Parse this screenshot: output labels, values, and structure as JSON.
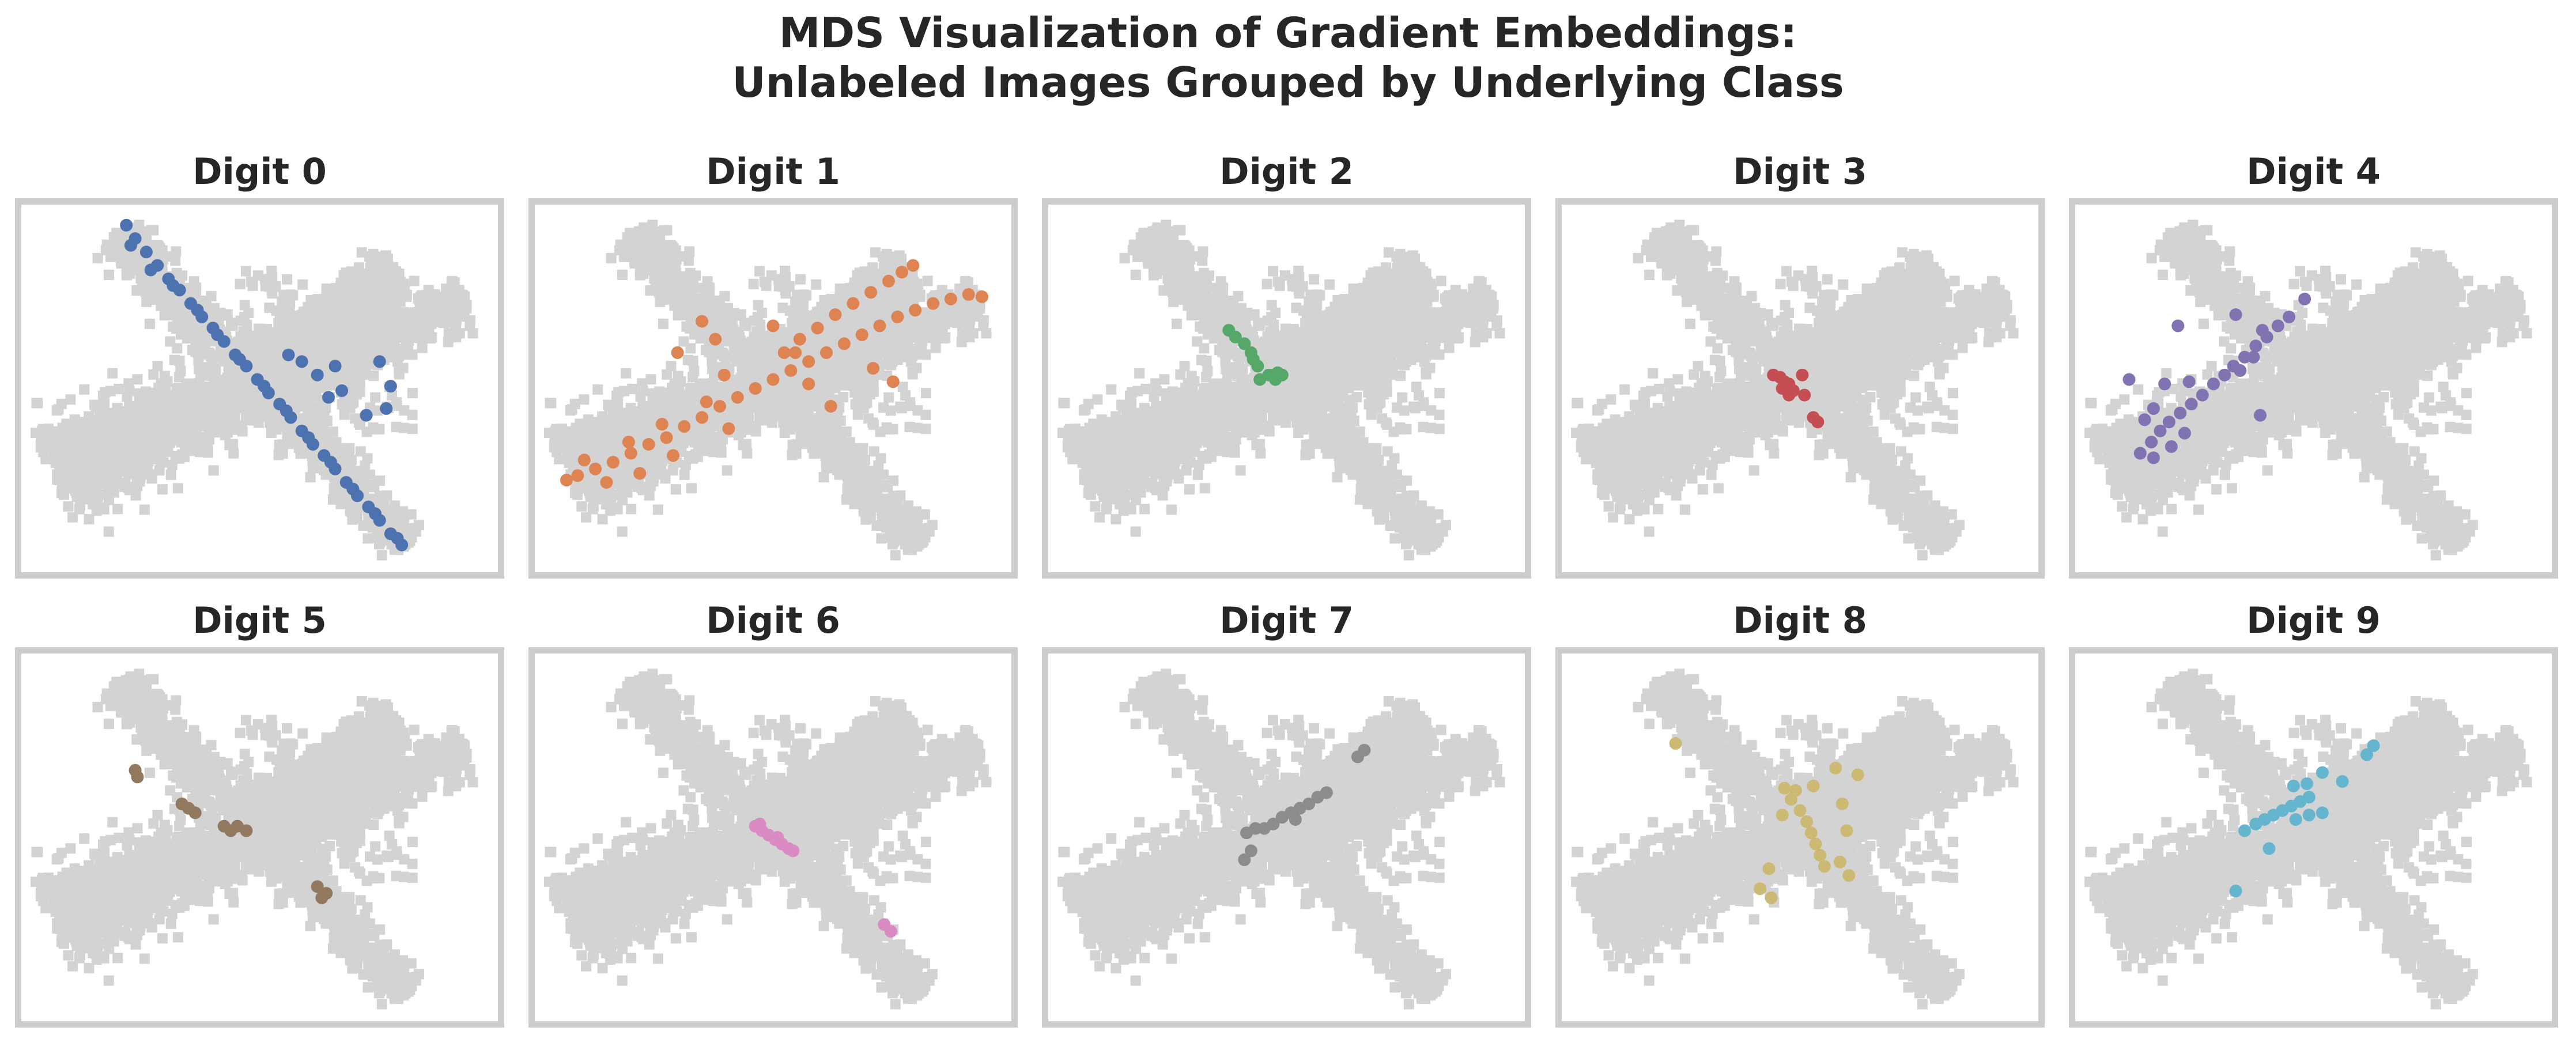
{
  "figure": {
    "title_line1": "MDS Visualization of Gradient Embeddings:",
    "title_line2": "Unlabeled Images Grouped by Underlying Class"
  },
  "colors": {
    "background_points": "#d3d3d3",
    "frame": "#cccccc",
    "text": "#262626"
  },
  "chart_data": {
    "type": "scatter",
    "xlim": [
      -10,
      10
    ],
    "ylim": [
      -7.5,
      7.5
    ],
    "grid": false,
    "legend": "none",
    "background_series": {
      "color": "#d3d3d3",
      "description_of_arms": "light gray points of all classes shown behind each panel"
    },
    "panels": [
      {
        "title": "Digit 0",
        "color": "#4c72b0",
        "points": [
          [
            -6.0,
            7.3
          ],
          [
            -5.6,
            6.7
          ],
          [
            -5.1,
            6.1
          ],
          [
            -4.6,
            5.5
          ],
          [
            -4.1,
            4.9
          ],
          [
            -3.6,
            4.4
          ],
          [
            -3.1,
            3.8
          ],
          [
            -2.6,
            3.2
          ],
          [
            -2.1,
            2.7
          ],
          [
            -1.6,
            2.1
          ],
          [
            -1.1,
            1.5
          ],
          [
            -0.6,
            1.0
          ],
          [
            -0.1,
            0.4
          ],
          [
            0.4,
            -0.2
          ],
          [
            0.9,
            -0.7
          ],
          [
            1.4,
            -1.3
          ],
          [
            1.9,
            -1.9
          ],
          [
            2.4,
            -2.5
          ],
          [
            2.9,
            -3.0
          ],
          [
            3.4,
            -3.6
          ],
          [
            3.9,
            -4.2
          ],
          [
            4.4,
            -4.8
          ],
          [
            4.9,
            -5.3
          ],
          [
            5.4,
            -5.9
          ],
          [
            5.9,
            -6.5
          ],
          [
            6.4,
            -7.0
          ],
          [
            -5.8,
            6.4
          ],
          [
            -4.9,
            5.3
          ],
          [
            -3.9,
            4.6
          ],
          [
            -2.8,
            3.5
          ],
          [
            -1.9,
            2.4
          ],
          [
            -0.9,
            1.3
          ],
          [
            0.2,
            0.1
          ],
          [
            1.2,
            -1.0
          ],
          [
            2.2,
            -2.2
          ],
          [
            3.2,
            -3.3
          ],
          [
            4.2,
            -4.5
          ],
          [
            5.2,
            -5.6
          ],
          [
            6.2,
            -6.7
          ],
          [
            1.3,
            1.5
          ],
          [
            1.9,
            1.2
          ],
          [
            2.6,
            0.6
          ],
          [
            3.4,
            1.0
          ],
          [
            3.7,
            -0.1
          ],
          [
            3.1,
            -0.4
          ],
          [
            5.4,
            1.2
          ],
          [
            5.9,
            0.1
          ],
          [
            5.7,
            -0.9
          ],
          [
            4.8,
            -1.2
          ]
        ]
      },
      {
        "title": "Digit 1",
        "color": "#dd8452",
        "points": [
          [
            -9.3,
            -4.1
          ],
          [
            -8.8,
            -3.9
          ],
          [
            -8.0,
            -3.6
          ],
          [
            -7.2,
            -3.3
          ],
          [
            -6.4,
            -2.9
          ],
          [
            -5.6,
            -2.5
          ],
          [
            -4.8,
            -2.2
          ],
          [
            -4.0,
            -1.7
          ],
          [
            -3.2,
            -1.3
          ],
          [
            -2.4,
            -0.8
          ],
          [
            -1.6,
            -0.4
          ],
          [
            -0.8,
            0.0
          ],
          [
            0.0,
            0.4
          ],
          [
            0.8,
            0.8
          ],
          [
            1.6,
            1.2
          ],
          [
            2.4,
            1.6
          ],
          [
            3.2,
            2.0
          ],
          [
            4.0,
            2.4
          ],
          [
            4.8,
            2.8
          ],
          [
            5.6,
            3.2
          ],
          [
            6.4,
            3.5
          ],
          [
            7.2,
            3.8
          ],
          [
            8.0,
            4.0
          ],
          [
            8.8,
            4.2
          ],
          [
            9.4,
            4.1
          ],
          [
            -8.5,
            -3.2
          ],
          [
            -7.5,
            -4.2
          ],
          [
            -6.5,
            -2.4
          ],
          [
            -6.0,
            -3.8
          ],
          [
            -5.0,
            -1.6
          ],
          [
            -4.5,
            -3.0
          ],
          [
            -3.0,
            -0.6
          ],
          [
            -2.0,
            -1.8
          ],
          [
            0.5,
            1.6
          ],
          [
            1.2,
            2.2
          ],
          [
            2.0,
            2.7
          ],
          [
            2.8,
            3.3
          ],
          [
            3.6,
            3.8
          ],
          [
            4.4,
            4.3
          ],
          [
            5.2,
            4.8
          ],
          [
            5.8,
            5.2
          ],
          [
            6.3,
            5.5
          ],
          [
            -2.6,
            2.2
          ],
          [
            -3.2,
            3.0
          ],
          [
            0.0,
            2.8
          ],
          [
            1.0,
            1.6
          ],
          [
            1.6,
            0.2
          ],
          [
            2.6,
            -0.8
          ],
          [
            4.5,
            0.9
          ],
          [
            5.4,
            0.3
          ],
          [
            -4.3,
            1.6
          ],
          [
            -2.2,
            0.6
          ]
        ]
      },
      {
        "title": "Digit 2",
        "color": "#55a868",
        "points": [
          [
            -2.6,
            2.6
          ],
          [
            -2.3,
            2.3
          ],
          [
            -1.9,
            2.0
          ],
          [
            -1.6,
            1.6
          ],
          [
            -1.5,
            1.3
          ],
          [
            -1.3,
            1.0
          ],
          [
            -1.2,
            0.4
          ],
          [
            -0.8,
            0.6
          ],
          [
            -0.6,
            0.6
          ],
          [
            -0.4,
            0.7
          ],
          [
            -0.2,
            0.6
          ],
          [
            -0.5,
            0.4
          ]
        ]
      },
      {
        "title": "Digit 3",
        "color": "#c44e52",
        "points": [
          [
            -1.2,
            0.6
          ],
          [
            -0.9,
            0.5
          ],
          [
            -0.7,
            0.3
          ],
          [
            -0.5,
            0.2
          ],
          [
            -0.3,
            -0.1
          ],
          [
            -0.5,
            -0.3
          ],
          [
            -0.8,
            0.0
          ],
          [
            0.1,
            0.6
          ],
          [
            0.2,
            -0.3
          ],
          [
            0.6,
            -1.3
          ],
          [
            0.8,
            -1.5
          ]
        ]
      },
      {
        "title": "Digit 4",
        "color": "#8172b2",
        "points": [
          [
            -7.8,
            -2.9
          ],
          [
            -7.3,
            -2.4
          ],
          [
            -6.9,
            -1.9
          ],
          [
            -6.5,
            -1.5
          ],
          [
            -6.0,
            -1.1
          ],
          [
            -5.5,
            -0.7
          ],
          [
            -5.0,
            -0.3
          ],
          [
            -4.5,
            0.2
          ],
          [
            -4.0,
            0.6
          ],
          [
            -3.6,
            1.0
          ],
          [
            -3.1,
            1.4
          ],
          [
            -2.6,
            1.9
          ],
          [
            -2.1,
            2.3
          ],
          [
            -1.6,
            2.8
          ],
          [
            -1.1,
            3.2
          ],
          [
            -7.2,
            -3.1
          ],
          [
            -6.4,
            -2.6
          ],
          [
            -5.8,
            -2.0
          ],
          [
            -7.6,
            -1.4
          ],
          [
            -7.2,
            -0.9
          ],
          [
            -8.3,
            0.4
          ],
          [
            -6.7,
            0.2
          ],
          [
            -5.6,
            0.3
          ],
          [
            -3.3,
            0.8
          ],
          [
            -2.7,
            1.4
          ],
          [
            -2.4,
            -1.2
          ],
          [
            -6.1,
            2.8
          ],
          [
            -3.5,
            3.3
          ],
          [
            -2.3,
            2.6
          ],
          [
            -0.4,
            4.0
          ]
        ]
      },
      {
        "title": "Digit 5",
        "color": "#937860",
        "points": [
          [
            -5.6,
            3.0
          ],
          [
            -5.5,
            2.7
          ],
          [
            -3.5,
            1.5
          ],
          [
            -3.2,
            1.3
          ],
          [
            -2.9,
            1.1
          ],
          [
            -1.6,
            0.5
          ],
          [
            -1.3,
            0.3
          ],
          [
            -1.0,
            0.5
          ],
          [
            -0.6,
            0.3
          ],
          [
            2.6,
            -2.2
          ],
          [
            3.0,
            -2.5
          ],
          [
            2.8,
            -2.7
          ]
        ]
      },
      {
        "title": "Digit 6",
        "color": "#da8bc3",
        "points": [
          [
            -0.8,
            0.5
          ],
          [
            -0.5,
            0.3
          ],
          [
            -0.2,
            0.1
          ],
          [
            0.1,
            -0.1
          ],
          [
            0.4,
            -0.3
          ],
          [
            0.7,
            -0.5
          ],
          [
            0.9,
            -0.6
          ],
          [
            -0.6,
            0.6
          ],
          [
            0.2,
            0.0
          ],
          [
            5.0,
            -3.9
          ],
          [
            5.3,
            -4.2
          ]
        ]
      },
      {
        "title": "Digit 7",
        "color": "#8c8c8c",
        "points": [
          [
            -1.8,
            0.2
          ],
          [
            -1.4,
            0.4
          ],
          [
            -1.0,
            0.4
          ],
          [
            -0.6,
            0.6
          ],
          [
            -0.2,
            0.9
          ],
          [
            0.2,
            1.1
          ],
          [
            0.6,
            1.3
          ],
          [
            1.0,
            1.5
          ],
          [
            1.4,
            1.8
          ],
          [
            1.8,
            2.0
          ],
          [
            3.2,
            3.6
          ],
          [
            3.5,
            3.9
          ],
          [
            -1.6,
            -0.6
          ],
          [
            -1.9,
            -1.0
          ],
          [
            0.4,
            0.8
          ]
        ]
      },
      {
        "title": "Digit 8",
        "color": "#ccb974",
        "points": [
          [
            -5.6,
            4.2
          ],
          [
            -0.7,
            2.2
          ],
          [
            -0.4,
            1.7
          ],
          [
            0.0,
            1.2
          ],
          [
            0.3,
            0.7
          ],
          [
            0.5,
            0.2
          ],
          [
            0.7,
            -0.3
          ],
          [
            0.9,
            -0.8
          ],
          [
            1.1,
            -1.3
          ],
          [
            -0.8,
            1.0
          ],
          [
            -0.2,
            2.1
          ],
          [
            1.6,
            3.1
          ],
          [
            2.6,
            2.8
          ],
          [
            1.9,
            1.5
          ],
          [
            2.1,
            0.3
          ],
          [
            1.8,
            -1.1
          ],
          [
            2.2,
            -1.7
          ],
          [
            -1.4,
            -1.4
          ],
          [
            -1.8,
            -2.3
          ],
          [
            -1.3,
            -2.7
          ],
          [
            0.6,
            2.3
          ]
        ]
      },
      {
        "title": "Digit 9",
        "color": "#64b5cd",
        "points": [
          [
            -3.1,
            0.3
          ],
          [
            -2.6,
            0.6
          ],
          [
            -2.2,
            0.8
          ],
          [
            -1.8,
            1.0
          ],
          [
            -1.4,
            1.2
          ],
          [
            -1.0,
            1.4
          ],
          [
            -0.6,
            1.6
          ],
          [
            -0.2,
            1.8
          ],
          [
            -0.8,
            0.8
          ],
          [
            -0.2,
            1.0
          ],
          [
            0.4,
            1.1
          ],
          [
            -0.9,
            2.3
          ],
          [
            -0.3,
            2.4
          ],
          [
            0.4,
            2.9
          ],
          [
            1.3,
            2.5
          ],
          [
            2.4,
            3.7
          ],
          [
            2.7,
            4.1
          ],
          [
            -2.0,
            -0.5
          ],
          [
            -3.5,
            -2.4
          ]
        ]
      }
    ]
  }
}
